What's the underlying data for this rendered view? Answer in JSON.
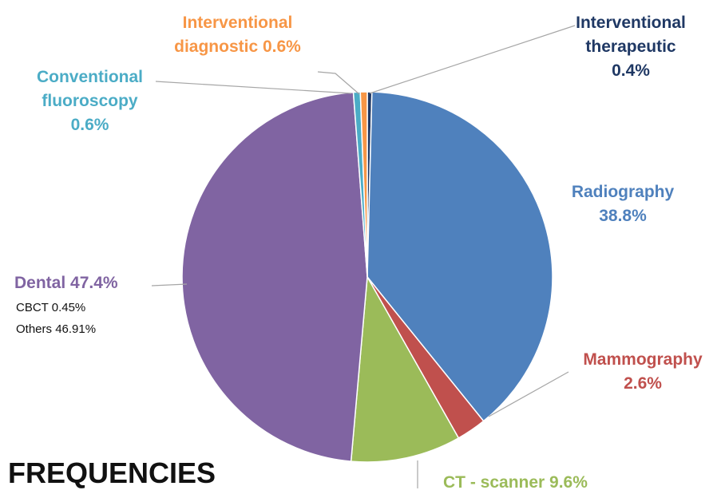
{
  "chart_data": {
    "type": "pie",
    "title": "FREQUENCIES",
    "categories": [
      "Interventional therapeutic",
      "Radiography",
      "Mammography",
      "CT - scanner",
      "Dental",
      "Conventional fluoroscopy",
      "Interventional diagnostic"
    ],
    "values": [
      0.4,
      38.8,
      2.6,
      9.6,
      47.4,
      0.6,
      0.6
    ],
    "value_labels": [
      "0.4%",
      "38.8%",
      "2.6%",
      "9.6%",
      "47.4%",
      "0.6%",
      "0.6%"
    ],
    "colors": [
      "#1f3864",
      "#4f81bd",
      "#c0504d",
      "#9bbb59",
      "#8064a2",
      "#4bacc6",
      "#f79646"
    ],
    "breakdown": [
      {
        "name": "CBCT",
        "value": 0.45,
        "value_label": "0.45%"
      },
      {
        "name": "Others",
        "value": 46.91,
        "value_label": "46.91%"
      }
    ]
  }
}
